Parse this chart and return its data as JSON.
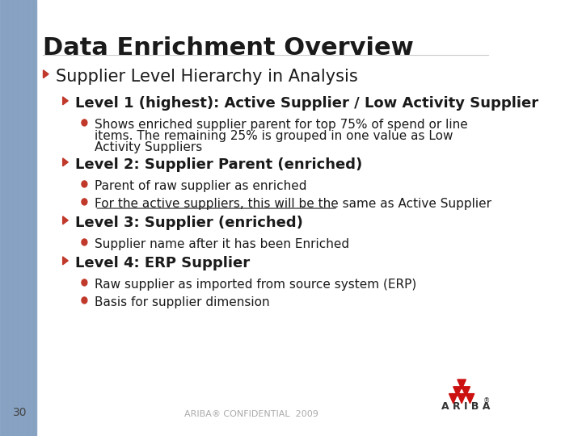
{
  "title": "Data Enrichment Overview",
  "bg_color": "#ffffff",
  "left_bar_color": "#8fa8c8",
  "page_number": "30",
  "footer_text": "ARIBA® CONFIDENTIAL  2009",
  "arrow_color": "#c0392b",
  "bullet_color": "#c0392b",
  "title_color": "#1a1a1a",
  "level1_color": "#1a1a1a",
  "level2_color": "#1a1a1a",
  "main_arrow_color": "#c0392b",
  "lines": [
    {
      "type": "arrow",
      "indent": 0,
      "text": "Supplier Level Hierarchy in Analysis",
      "bold": false,
      "fontsize": 15,
      "color": "#1a1a1a"
    },
    {
      "type": "arrow",
      "indent": 1,
      "text": "Level 1 (highest): Active Supplier / Low Activity Supplier",
      "bold": true,
      "fontsize": 13,
      "color": "#1a1a1a"
    },
    {
      "type": "bullet",
      "indent": 2,
      "text": "Shows enriched supplier parent for top 75% of spend or line\nitems. The remaining 25% is grouped in one value as Low\nActivity Suppliers",
      "bold": false,
      "fontsize": 11,
      "color": "#1a1a1a"
    },
    {
      "type": "arrow",
      "indent": 1,
      "text": "Level 2: Supplier Parent (enriched)",
      "bold": true,
      "fontsize": 13,
      "color": "#1a1a1a"
    },
    {
      "type": "bullet",
      "indent": 2,
      "text": "Parent of raw supplier as enriched",
      "bold": false,
      "fontsize": 11,
      "color": "#1a1a1a"
    },
    {
      "type": "bullet",
      "indent": 2,
      "text": "For the active suppliers, this will be the same as Active Supplier",
      "bold": false,
      "fontsize": 11,
      "color": "#1a1a1a",
      "underline": true
    },
    {
      "type": "arrow",
      "indent": 1,
      "text": "Level 3: Supplier (enriched)",
      "bold": true,
      "fontsize": 13,
      "color": "#1a1a1a"
    },
    {
      "type": "bullet",
      "indent": 2,
      "text": "Supplier name after it has been Enriched",
      "bold": false,
      "fontsize": 11,
      "color": "#1a1a1a"
    },
    {
      "type": "arrow",
      "indent": 1,
      "text": "Level 4: ERP Supplier",
      "bold": true,
      "fontsize": 13,
      "color": "#1a1a1a"
    },
    {
      "type": "bullet",
      "indent": 2,
      "text": "Raw supplier as imported from source system (ERP)",
      "bold": false,
      "fontsize": 11,
      "color": "#1a1a1a"
    },
    {
      "type": "bullet",
      "indent": 2,
      "text": "Basis for supplier dimension",
      "bold": false,
      "fontsize": 11,
      "color": "#1a1a1a"
    }
  ]
}
